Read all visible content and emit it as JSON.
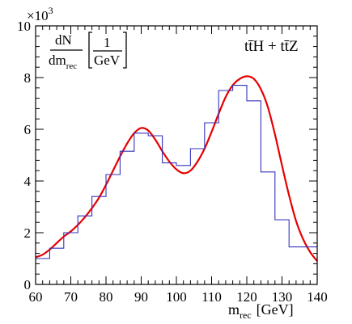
{
  "chart_data": {
    "type": "histogram",
    "xlabel_main": "m",
    "xlabel_sub": "rec",
    "xlabel_unit": "[GeV]",
    "ylabel_num": "dN",
    "ylabel_den_main": "dm",
    "ylabel_den_sub": "rec",
    "ylabel_unit_num": "1",
    "ylabel_unit_den": "GeV",
    "y_exponent_base": "×10",
    "y_exponent": "3",
    "process_label": "tt̄H + tt̄Z",
    "xlim": [
      60,
      140
    ],
    "ylim": [
      0,
      10
    ],
    "x_ticks": [
      60,
      70,
      80,
      90,
      100,
      110,
      120,
      130,
      140
    ],
    "y_ticks": [
      0,
      2,
      4,
      6,
      8,
      10
    ],
    "bin_edges": [
      60,
      64,
      68,
      72,
      76,
      80,
      84,
      88,
      92,
      96,
      100,
      104,
      108,
      112,
      116,
      120,
      124,
      128,
      132,
      136,
      140
    ],
    "series": [
      {
        "kind": "histogram",
        "color": "#3333bb",
        "values": [
          1.0,
          1.4,
          2.0,
          2.65,
          3.4,
          4.25,
          5.15,
          5.85,
          5.75,
          4.7,
          4.6,
          5.25,
          6.25,
          7.5,
          7.7,
          7.1,
          4.35,
          2.5,
          1.45,
          1.45
        ]
      },
      {
        "kind": "fit",
        "color": "#e60000",
        "points": [
          [
            60,
            1.05
          ],
          [
            62,
            1.15
          ],
          [
            64,
            1.35
          ],
          [
            66,
            1.6
          ],
          [
            68,
            1.85
          ],
          [
            70,
            2.05
          ],
          [
            72,
            2.3
          ],
          [
            74,
            2.6
          ],
          [
            76,
            2.95
          ],
          [
            78,
            3.35
          ],
          [
            80,
            3.85
          ],
          [
            82,
            4.4
          ],
          [
            84,
            4.95
          ],
          [
            86,
            5.45
          ],
          [
            88,
            5.85
          ],
          [
            90,
            6.05
          ],
          [
            92,
            5.95
          ],
          [
            94,
            5.6
          ],
          [
            96,
            5.15
          ],
          [
            98,
            4.75
          ],
          [
            100,
            4.45
          ],
          [
            102,
            4.3
          ],
          [
            104,
            4.4
          ],
          [
            106,
            4.75
          ],
          [
            108,
            5.25
          ],
          [
            110,
            5.9
          ],
          [
            112,
            6.6
          ],
          [
            114,
            7.25
          ],
          [
            116,
            7.7
          ],
          [
            118,
            7.95
          ],
          [
            120,
            8.05
          ],
          [
            122,
            7.95
          ],
          [
            124,
            7.55
          ],
          [
            126,
            6.85
          ],
          [
            128,
            5.8
          ],
          [
            130,
            4.6
          ],
          [
            132,
            3.45
          ],
          [
            134,
            2.45
          ],
          [
            136,
            1.75
          ],
          [
            138,
            1.25
          ],
          [
            140,
            0.9
          ]
        ]
      }
    ]
  }
}
